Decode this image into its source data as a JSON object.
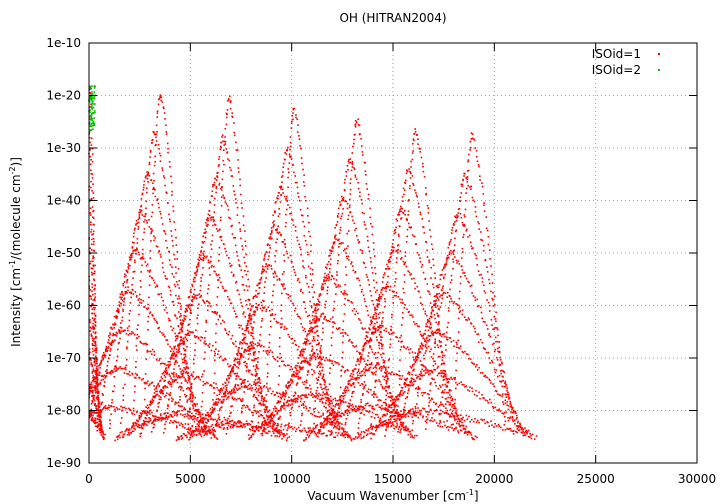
{
  "chart_data": {
    "type": "scatter",
    "title": "OH (HITRAN2004)",
    "xlabel_parts": [
      "Vacuum Wavenumber [cm",
      "-1",
      "]"
    ],
    "ylabel_parts": [
      "Intensity [cm",
      "-1",
      "/(molecule cm",
      "-2",
      ")]"
    ],
    "xlim": [
      0,
      30000
    ],
    "ylim_exponent": [
      -90,
      -10
    ],
    "y_scale": "log",
    "x_ticks": [
      0,
      5000,
      10000,
      15000,
      20000,
      25000,
      30000
    ],
    "x_tick_labels": [
      "0",
      "5000",
      "10000",
      "15000",
      "20000",
      "25000",
      "30000"
    ],
    "y_ticks_exponent": [
      -90,
      -80,
      -70,
      -60,
      -50,
      -40,
      -30,
      -20,
      -10
    ],
    "y_tick_labels": [
      "1e-90",
      "1e-80",
      "1e-70",
      "1e-60",
      "1e-50",
      "1e-40",
      "1e-30",
      "1e-20",
      "1e-10"
    ],
    "grid": true,
    "legend_position": "top-right",
    "series": [
      {
        "name": "ISOid=1",
        "color": "#ff0000",
        "bands": [
          {
            "center": 50,
            "peak_exp": -18.5,
            "halfwidth": 350
          },
          {
            "center": 3500,
            "peak_exp": -19.5,
            "halfwidth": 1400
          },
          {
            "center": 6900,
            "peak_exp": -20.5,
            "halfwidth": 1450
          },
          {
            "center": 10100,
            "peak_exp": -22.5,
            "halfwidth": 1500
          },
          {
            "center": 13200,
            "peak_exp": -24.5,
            "halfwidth": 1550
          },
          {
            "center": 16100,
            "peak_exp": -26.5,
            "halfwidth": 1600
          },
          {
            "center": 18900,
            "peak_exp": -27.5,
            "halfwidth": 1650
          }
        ],
        "floor_exp": -85.5
      },
      {
        "name": "ISOid=2",
        "color": "#00c000",
        "x_range": [
          0,
          300
        ],
        "y_exp_range": [
          -27,
          -18
        ]
      }
    ]
  }
}
